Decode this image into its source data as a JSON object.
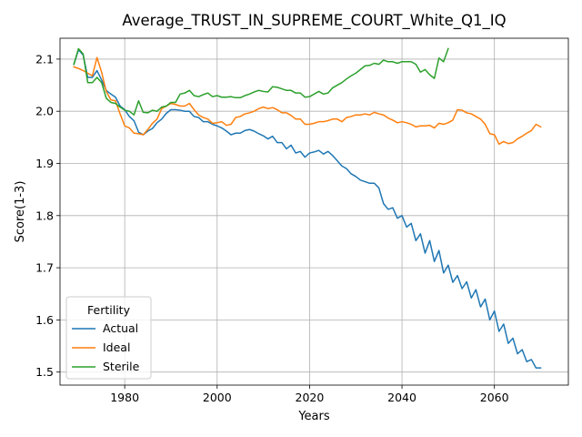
{
  "chart_data": {
    "type": "line",
    "title": "Average_TRUST_IN_SUPREME_COURT_White_Q1_IQ",
    "xlabel": "Years",
    "ylabel": "Score(1-3)",
    "xlim": [
      1966,
      2076
    ],
    "ylim": [
      1.475,
      2.14
    ],
    "xticks": [
      1980,
      2000,
      2020,
      2040,
      2060
    ],
    "yticks": [
      1.5,
      1.6,
      1.7,
      1.8,
      1.9,
      2.0,
      2.1
    ],
    "ytick_labels": [
      "1.5",
      "1.6",
      "1.7",
      "1.8",
      "1.9",
      "2.0",
      "2.1"
    ],
    "grid": true,
    "legend": {
      "title": "Fertility",
      "position": "lower left"
    },
    "series": [
      {
        "name": "Actual",
        "color": "#1f77b4",
        "x": [
          1969,
          1970,
          1971,
          1972,
          1973,
          1974,
          1975,
          1976,
          1977,
          1978,
          1979,
          1980,
          1981,
          1982,
          1983,
          1984,
          1985,
          1986,
          1987,
          1988,
          1989,
          1990,
          1991,
          1992,
          1993,
          1994,
          1995,
          1996,
          1997,
          1998,
          1999,
          2000,
          2001,
          2002,
          2003,
          2004,
          2005,
          2006,
          2007,
          2008,
          2009,
          2010,
          2011,
          2012,
          2013,
          2014,
          2015,
          2016,
          2017,
          2018,
          2019,
          2020,
          2021,
          2022,
          2023,
          2024,
          2025,
          2026,
          2027,
          2028,
          2029,
          2030,
          2031,
          2032,
          2033,
          2034,
          2035,
          2036,
          2037,
          2038,
          2039,
          2040,
          2041,
          2042,
          2043,
          2044,
          2045,
          2046,
          2047,
          2048,
          2049,
          2050,
          2051,
          2052,
          2053,
          2054,
          2055,
          2056,
          2057,
          2058,
          2059,
          2060,
          2061,
          2062,
          2063,
          2064,
          2065,
          2066,
          2067,
          2068,
          2069,
          2070
        ],
        "y": [
          2.09,
          2.118,
          2.108,
          2.065,
          2.065,
          2.078,
          2.06,
          2.04,
          2.033,
          2.027,
          2.01,
          2.003,
          1.99,
          1.982,
          1.96,
          1.955,
          1.962,
          1.967,
          1.978,
          1.985,
          1.996,
          2.003,
          2.003,
          2.002,
          2.0,
          2.0,
          1.99,
          1.988,
          1.98,
          1.98,
          1.975,
          1.972,
          1.968,
          1.962,
          1.955,
          1.958,
          1.958,
          1.963,
          1.965,
          1.962,
          1.957,
          1.953,
          1.947,
          1.952,
          1.94,
          1.94,
          1.928,
          1.935,
          1.92,
          1.923,
          1.912,
          1.92,
          1.922,
          1.925,
          1.918,
          1.923,
          1.915,
          1.905,
          1.895,
          1.89,
          1.88,
          1.875,
          1.868,
          1.865,
          1.862,
          1.862,
          1.853,
          1.823,
          1.812,
          1.815,
          1.795,
          1.8,
          1.778,
          1.785,
          1.752,
          1.765,
          1.728,
          1.752,
          1.712,
          1.733,
          1.69,
          1.705,
          1.672,
          1.685,
          1.66,
          1.673,
          1.642,
          1.658,
          1.625,
          1.64,
          1.6,
          1.617,
          1.578,
          1.592,
          1.555,
          1.565,
          1.535,
          1.543,
          1.52,
          1.524,
          1.508,
          1.508
        ]
      },
      {
        "name": "Ideal",
        "color": "#ff7f0e",
        "x": [
          1969,
          1970,
          1971,
          1972,
          1973,
          1974,
          1975,
          1976,
          1977,
          1978,
          1979,
          1980,
          1981,
          1982,
          1983,
          1984,
          1985,
          1986,
          1987,
          1988,
          1989,
          1990,
          1991,
          1992,
          1993,
          1994,
          1995,
          1996,
          1997,
          1998,
          1999,
          2000,
          2001,
          2002,
          2003,
          2004,
          2005,
          2006,
          2007,
          2008,
          2009,
          2010,
          2011,
          2012,
          2013,
          2014,
          2015,
          2016,
          2017,
          2018,
          2019,
          2020,
          2021,
          2022,
          2023,
          2024,
          2025,
          2026,
          2027,
          2028,
          2029,
          2030,
          2031,
          2032,
          2033,
          2034,
          2035,
          2036,
          2037,
          2038,
          2039,
          2040,
          2041,
          2042,
          2043,
          2044,
          2045,
          2046,
          2047,
          2048,
          2049,
          2050,
          2051,
          2052,
          2053,
          2054,
          2055,
          2056,
          2057,
          2058,
          2059,
          2060,
          2061,
          2062,
          2063,
          2064,
          2065,
          2066,
          2067,
          2068,
          2069,
          2070
        ],
        "y": [
          2.085,
          2.082,
          2.078,
          2.073,
          2.068,
          2.103,
          2.075,
          2.038,
          2.022,
          2.02,
          1.995,
          1.972,
          1.968,
          1.958,
          1.957,
          1.955,
          1.965,
          1.977,
          1.985,
          2.005,
          2.01,
          2.015,
          2.013,
          2.01,
          2.01,
          2.015,
          2.003,
          1.993,
          1.988,
          1.985,
          1.977,
          1.978,
          1.98,
          1.973,
          1.975,
          1.988,
          1.99,
          1.995,
          1.997,
          2.0,
          2.005,
          2.008,
          2.005,
          2.007,
          2.003,
          1.997,
          1.997,
          1.992,
          1.985,
          1.985,
          1.975,
          1.975,
          1.977,
          1.98,
          1.98,
          1.982,
          1.985,
          1.985,
          1.98,
          1.988,
          1.99,
          1.993,
          1.993,
          1.995,
          1.993,
          1.998,
          1.995,
          1.993,
          1.987,
          1.983,
          1.978,
          1.98,
          1.978,
          1.975,
          1.97,
          1.972,
          1.972,
          1.973,
          1.968,
          1.977,
          1.975,
          1.978,
          1.983,
          2.003,
          2.002,
          1.997,
          1.995,
          1.99,
          1.985,
          1.975,
          1.957,
          1.955,
          1.937,
          1.942,
          1.938,
          1.94,
          1.947,
          1.952,
          1.958,
          1.963,
          1.975,
          1.97
        ]
      },
      {
        "name": "Sterile",
        "color": "#2ca02c",
        "x": [
          1969,
          1970,
          1971,
          1972,
          1973,
          1974,
          1975,
          1976,
          1977,
          1978,
          1979,
          1980,
          1981,
          1982,
          1983,
          1984,
          1985,
          1986,
          1987,
          1988,
          1989,
          1990,
          1991,
          1992,
          1993,
          1994,
          1995,
          1996,
          1997,
          1998,
          1999,
          2000,
          2001,
          2002,
          2003,
          2004,
          2005,
          2006,
          2007,
          2008,
          2009,
          2010,
          2011,
          2012,
          2013,
          2014,
          2015,
          2016,
          2017,
          2018,
          2019,
          2020,
          2021,
          2022,
          2023,
          2024,
          2025,
          2026,
          2027,
          2028,
          2029,
          2030,
          2031,
          2032,
          2033,
          2034,
          2035,
          2036,
          2037,
          2038,
          2039,
          2040,
          2041,
          2042,
          2043,
          2044,
          2045,
          2046,
          2047,
          2048,
          2049,
          2050
        ],
        "y": [
          2.09,
          2.12,
          2.11,
          2.055,
          2.055,
          2.065,
          2.055,
          2.025,
          2.017,
          2.015,
          2.008,
          2.002,
          2.0,
          1.993,
          2.02,
          1.998,
          1.997,
          2.002,
          2.0,
          2.008,
          2.01,
          2.017,
          2.017,
          2.033,
          2.035,
          2.04,
          2.03,
          2.028,
          2.032,
          2.035,
          2.028,
          2.03,
          2.027,
          2.027,
          2.028,
          2.026,
          2.026,
          2.03,
          2.033,
          2.037,
          2.04,
          2.038,
          2.037,
          2.047,
          2.046,
          2.043,
          2.04,
          2.04,
          2.035,
          2.035,
          2.027,
          2.028,
          2.033,
          2.038,
          2.033,
          2.035,
          2.045,
          2.05,
          2.055,
          2.062,
          2.068,
          2.073,
          2.08,
          2.087,
          2.088,
          2.092,
          2.09,
          2.098,
          2.095,
          2.095,
          2.092,
          2.095,
          2.095,
          2.095,
          2.09,
          2.075,
          2.08,
          2.07,
          2.063,
          2.102,
          2.095,
          2.12
        ]
      }
    ]
  }
}
